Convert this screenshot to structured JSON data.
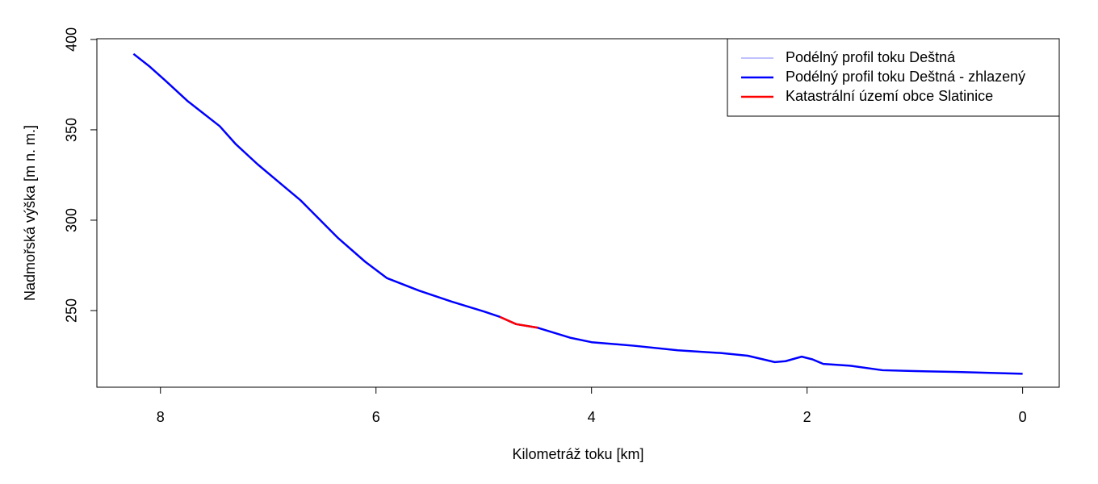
{
  "chart_data": {
    "type": "line",
    "x_label": "Kilometráž toku [km]",
    "y_label": "Nadmořská výška [m n. m.]",
    "xlim": [
      8.59,
      -0.34
    ],
    "ylim": [
      207.6,
      400.4
    ],
    "xticks": [
      8,
      6,
      4,
      2,
      0
    ],
    "yticks": [
      250,
      300,
      350,
      400
    ],
    "legend": "top-right",
    "series": [
      {
        "name": "Podélný profil toku Deštná",
        "color": "#8080ff",
        "width": 1,
        "x": [
          8.25,
          8.1,
          7.95,
          7.75,
          7.6,
          7.45,
          7.3,
          7.1,
          6.9,
          6.7,
          6.55,
          6.35,
          6.1,
          5.9,
          5.6,
          5.3,
          5.0,
          4.85,
          4.7,
          4.5,
          4.2,
          4.0,
          3.6,
          3.2,
          2.8,
          2.55,
          2.3,
          2.2,
          2.05,
          1.95,
          1.85,
          1.6,
          1.3,
          1.0,
          0.6,
          0.3,
          0.0
        ],
        "values": [
          392,
          385,
          377,
          366,
          359,
          352,
          342,
          331,
          321,
          311,
          302,
          290,
          277,
          268,
          261,
          255,
          249.5,
          246.5,
          242.5,
          240.5,
          235,
          232.5,
          230.5,
          228,
          226.5,
          225,
          221.5,
          222,
          224.5,
          223,
          220.5,
          219.5,
          217,
          216.5,
          216,
          215.5,
          215
        ]
      },
      {
        "name": "Podélný profil toku Deštná - zhlazený",
        "color": "#0000ff",
        "width": 2.5,
        "x": [
          8.25,
          8.1,
          7.95,
          7.75,
          7.6,
          7.45,
          7.3,
          7.1,
          6.9,
          6.7,
          6.55,
          6.35,
          6.1,
          5.9,
          5.6,
          5.3,
          5.0,
          4.85,
          4.7,
          4.5,
          4.2,
          4.0,
          3.6,
          3.2,
          2.8,
          2.55,
          2.3,
          2.2,
          2.05,
          1.95,
          1.85,
          1.6,
          1.3,
          1.0,
          0.6,
          0.3,
          0.0
        ],
        "values": [
          392,
          385,
          377,
          366,
          359,
          352,
          342,
          331,
          321,
          311,
          302,
          290,
          277,
          268,
          261,
          255,
          249.5,
          246.5,
          242.5,
          240.5,
          235,
          232.5,
          230.5,
          228,
          226.5,
          225,
          221.5,
          222,
          224.5,
          223,
          220.5,
          219.5,
          217,
          216.5,
          216,
          215.5,
          215
        ]
      },
      {
        "name": "Katastrální území obce Slatinice",
        "color": "#ff0000",
        "width": 2.5,
        "x": [
          4.85,
          4.7,
          4.5
        ],
        "values": [
          246.5,
          242.5,
          240.5
        ]
      }
    ]
  }
}
